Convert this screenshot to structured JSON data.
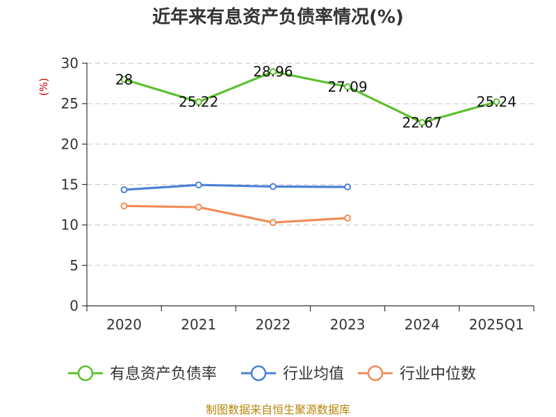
{
  "chart_data": {
    "type": "line",
    "title": "近年来有息资产负债率情况(%)",
    "ylabel": "(%)",
    "xlabel": "",
    "categories": [
      "2020",
      "2021",
      "2022",
      "2023",
      "2024",
      "2025Q1"
    ],
    "ylim": [
      0,
      30
    ],
    "yticks": [
      0,
      5,
      10,
      15,
      20,
      25,
      30
    ],
    "grid": true,
    "legend_position": "bottom",
    "series": [
      {
        "name": "有息资产负债率",
        "color": "#5cc02c",
        "values": [
          28,
          25.22,
          28.96,
          27.09,
          22.67,
          25.24
        ],
        "labels": [
          "28",
          "25.22",
          "28.96",
          "27.09",
          "22.67",
          "25.24"
        ],
        "show_labels": true
      },
      {
        "name": "行业均值",
        "color": "#4a7fd6",
        "values": [
          14.35,
          14.95,
          14.75,
          14.7,
          null,
          null
        ],
        "show_labels": false
      },
      {
        "name": "行业中位数",
        "color": "#f28a55",
        "values": [
          12.35,
          12.2,
          10.3,
          10.85,
          null,
          null
        ],
        "show_labels": false
      }
    ],
    "source": "制图数据来自恒生聚源数据库"
  }
}
